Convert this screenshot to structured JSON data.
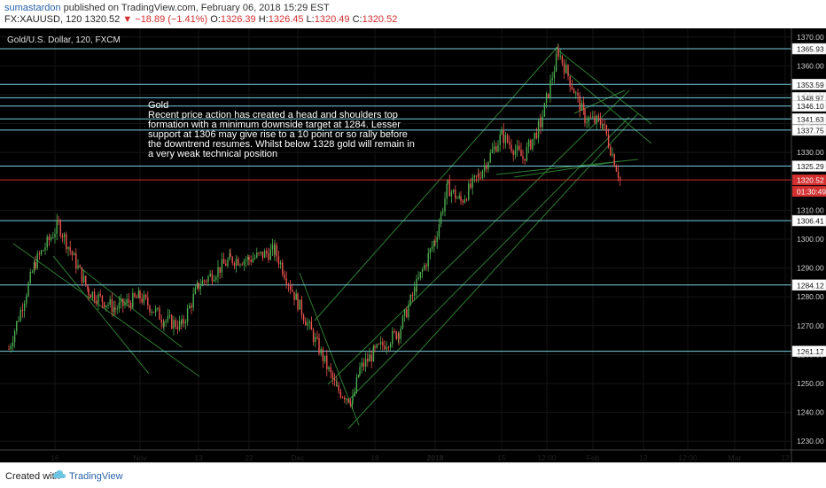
{
  "header": {
    "user": "sumastardon",
    "published_text": "published on TradingView.com, February 06, 2018 15:29 EST",
    "symbol_tf": "FX:XAUUSD, 120",
    "last": "1320.52",
    "change_arrow": "▼",
    "change": "−18.89 (−1.41%)",
    "o_label": "O:",
    "o": "1326.39",
    "h_label": "H:",
    "h": "1326.45",
    "l_label": "L:",
    "l": "1320.49",
    "c_label": "C:",
    "c": "1320.52"
  },
  "chart_title": "Gold/U.S. Dollar, 120, FXCM",
  "annotation": [
    "Gold",
    "Recent price action has created a head and shoulders top",
    "formation with a minimum downside target at 1284. Lesser",
    "support at 1306 may give rise to a 10 point or so rally before",
    "the downtrend resumes. Whilst below 1328 gold will remain in",
    "a very weak technical position"
  ],
  "footer": {
    "created": "Created with",
    "brand": "TradingView"
  },
  "colors": {
    "background": "#000000",
    "up": "#4caf50",
    "down": "#ef5350",
    "hline": "#79cde0",
    "channel": "#2e7d32",
    "last_price": "#d32f2f"
  },
  "chart_data": {
    "type": "line",
    "ylim": [
      1227,
      1373
    ],
    "y_ticks": [
      "1370.00",
      "1360.00",
      "1350.00",
      "1340.00",
      "1330.00",
      "1310.00",
      "1300.00",
      "1290.00",
      "1280.00",
      "1270.00",
      "1260.00",
      "1250.00",
      "1240.00",
      "1230.00"
    ],
    "x_ticks": [
      "16",
      "Nov",
      "13",
      "22",
      "Dec",
      "18",
      "2018",
      "15",
      "12:00",
      "Feb",
      "12",
      "12:00",
      "Mar",
      "12"
    ],
    "price_levels": [
      "1365.93",
      "1353.59",
      "1348.97",
      "1346.10",
      "1341.63",
      "1337.75",
      "1325.29",
      "1306.41",
      "1284.12",
      "1261.17"
    ],
    "last_price": "1320.52",
    "countdown": "01:30:49",
    "series": [
      {
        "x": [
          "Oct 05",
          "Oct 12",
          "Oct 16",
          "Oct 20",
          "Oct 27",
          "Nov 01",
          "Nov 06",
          "Nov 10",
          "Nov 13",
          "Nov 17",
          "Nov 22",
          "Nov 27",
          "Dec 01",
          "Dec 05",
          "Dec 08",
          "Dec 12",
          "Dec 14",
          "Dec 18",
          "Dec 22",
          "Dec 27",
          "Jan 01",
          "Jan 04",
          "Jan 08",
          "Jan 12",
          "Jan 15",
          "Jan 19",
          "Jan 22",
          "Jan 25",
          "Jan 29",
          "Feb 01",
          "Feb 06"
        ],
        "values": [
          1262,
          1292,
          1305,
          1282,
          1276,
          1280,
          1272,
          1270,
          1284,
          1293,
          1293,
          1296,
          1278,
          1262,
          1248,
          1244,
          1255,
          1261,
          1268,
          1284,
          1300,
          1318,
          1313,
          1322,
          1336,
          1328,
          1340,
          1365,
          1342,
          1340,
          1320.52
        ]
      }
    ]
  }
}
